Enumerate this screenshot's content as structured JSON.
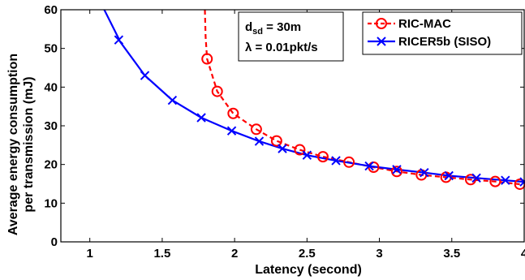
{
  "chart_data": {
    "type": "line",
    "xlabel": "Latency (second)",
    "ylabel_line1": "Average energy consumption",
    "ylabel_line2": "per transmission (mJ)",
    "xlim": [
      0.8,
      4
    ],
    "ylim": [
      0,
      60
    ],
    "xticks": [
      1,
      1.5,
      2,
      2.5,
      3,
      3.5,
      4
    ],
    "xtick_labels": [
      "1",
      "1.5",
      "2",
      "2.5",
      "3",
      "3.5",
      "4"
    ],
    "yticks": [
      0,
      10,
      20,
      30,
      40,
      50,
      60
    ],
    "ytick_labels": [
      "0",
      "10",
      "20",
      "30",
      "40",
      "50",
      "60"
    ],
    "grid": false,
    "legend_position": "top-right",
    "annotation": {
      "line1_main": "d",
      "line1_sub": "sd",
      "line1_rest": " = 30m",
      "line2": "λ = 0.01pkt/s"
    },
    "series": [
      {
        "name": "RIC-MAC",
        "color": "#ff0000",
        "marker": "circle",
        "line_style": "dashed",
        "curve": [
          [
            1.795,
            60
          ],
          [
            1.8,
            53
          ],
          [
            1.81,
            47.3
          ]
        ],
        "x": [
          1.81,
          1.88,
          1.99,
          2.15,
          2.29,
          2.45,
          2.61,
          2.79,
          2.96,
          3.12,
          3.29,
          3.46,
          3.63,
          3.8,
          3.97
        ],
        "y": [
          47.3,
          38.9,
          33.2,
          29.1,
          26.1,
          23.8,
          22.0,
          20.6,
          19.3,
          18.2,
          17.3,
          16.7,
          16.1,
          15.6,
          14.9
        ]
      },
      {
        "name": "RICER5b (SISO)",
        "color": "#0000ff",
        "marker": "x",
        "line_style": "solid",
        "curve": [
          [
            1.1,
            60
          ],
          [
            1.2,
            52.5
          ]
        ],
        "x": [
          1.2,
          1.38,
          1.57,
          1.77,
          1.98,
          2.17,
          2.33,
          2.5,
          2.7,
          2.93,
          3.12,
          3.31,
          3.48,
          3.67,
          3.87,
          4.0
        ],
        "y": [
          52.2,
          43.0,
          36.6,
          32.1,
          28.7,
          26.0,
          24.1,
          22.4,
          21.0,
          19.6,
          18.7,
          17.9,
          17.1,
          16.5,
          15.9,
          15.5
        ]
      }
    ]
  }
}
